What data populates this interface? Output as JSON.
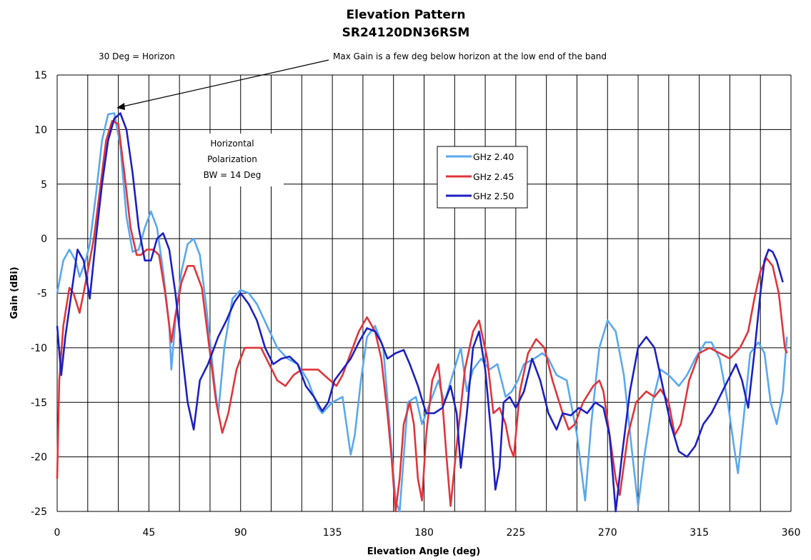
{
  "chart_data": {
    "type": "line",
    "title": "Elevation Pattern",
    "subtitle": "SR24120DN36RSM",
    "xlabel": "Elevation Angle (deg)",
    "ylabel": "Gain (dBi)",
    "xlim": [
      0,
      360
    ],
    "ylim": [
      -25,
      15
    ],
    "x_ticks": [
      0,
      45,
      90,
      135,
      180,
      225,
      270,
      315,
      360
    ],
    "y_ticks": [
      15,
      10,
      5,
      0,
      -5,
      -10,
      -15,
      -20,
      -25
    ],
    "grid": true,
    "legend": {
      "position": "inside-right-of-center"
    },
    "annotations": {
      "horizon": "30 Deg = Horizon",
      "max_gain": "Max Gain is a few deg below horizon at the low  end of the band",
      "pol_line1": "Horizontal",
      "pol_line2": "Polarization",
      "pol_line3": "BW = 14 Deg"
    },
    "series": [
      {
        "name": "GHz 2.40",
        "color": "#5aa8ee",
        "points": [
          [
            0,
            -5
          ],
          [
            3,
            -2
          ],
          [
            6,
            -1
          ],
          [
            9,
            -2
          ],
          [
            11,
            -3.5
          ],
          [
            14,
            -2
          ],
          [
            16,
            -0.5
          ],
          [
            19,
            4
          ],
          [
            22,
            9
          ],
          [
            25,
            11.4
          ],
          [
            28,
            11.5
          ],
          [
            31,
            8.5
          ],
          [
            34,
            2
          ],
          [
            37,
            -1.2
          ],
          [
            40,
            -1
          ],
          [
            43,
            1
          ],
          [
            46,
            2.5
          ],
          [
            49,
            1
          ],
          [
            52,
            -3
          ],
          [
            55,
            -8
          ],
          [
            56,
            -12
          ],
          [
            58,
            -7.5
          ],
          [
            61,
            -3
          ],
          [
            64,
            -0.5
          ],
          [
            67,
            0
          ],
          [
            70,
            -1.5
          ],
          [
            73,
            -6
          ],
          [
            77,
            -13
          ],
          [
            79,
            -16
          ],
          [
            82,
            -10
          ],
          [
            86,
            -5.5
          ],
          [
            90,
            -4.7
          ],
          [
            94,
            -5
          ],
          [
            98,
            -6
          ],
          [
            103,
            -8
          ],
          [
            108,
            -10
          ],
          [
            113,
            -11
          ],
          [
            118,
            -11.5
          ],
          [
            123,
            -13
          ],
          [
            128,
            -15.5
          ],
          [
            130,
            -16
          ],
          [
            135,
            -15
          ],
          [
            140,
            -14.5
          ],
          [
            144,
            -19.8
          ],
          [
            146,
            -18
          ],
          [
            149,
            -13
          ],
          [
            152,
            -9
          ],
          [
            156,
            -8
          ],
          [
            160,
            -10
          ],
          [
            163,
            -17
          ],
          [
            166,
            -24
          ],
          [
            168,
            -25
          ],
          [
            172,
            -15
          ],
          [
            176,
            -14.5
          ],
          [
            179,
            -17
          ],
          [
            183,
            -15
          ],
          [
            187,
            -13
          ],
          [
            190,
            -15
          ],
          [
            194,
            -12.5
          ],
          [
            198,
            -10
          ],
          [
            201,
            -14
          ],
          [
            204,
            -12
          ],
          [
            208,
            -11
          ],
          [
            212,
            -12
          ],
          [
            216,
            -11.5
          ],
          [
            220,
            -14.5
          ],
          [
            223,
            -14
          ],
          [
            226,
            -13
          ],
          [
            229,
            -11.5
          ],
          [
            234,
            -11
          ],
          [
            238,
            -10.5
          ],
          [
            241,
            -11
          ],
          [
            245,
            -12.5
          ],
          [
            250,
            -13
          ],
          [
            255,
            -18
          ],
          [
            259,
            -24
          ],
          [
            262,
            -17
          ],
          [
            266,
            -10
          ],
          [
            270,
            -7.5
          ],
          [
            274,
            -8.5
          ],
          [
            278,
            -12.5
          ],
          [
            282,
            -19.5
          ],
          [
            285,
            -24.5
          ],
          [
            288,
            -20
          ],
          [
            292,
            -15
          ],
          [
            296,
            -12
          ],
          [
            300,
            -12.5
          ],
          [
            305,
            -13.5
          ],
          [
            309,
            -12.5
          ],
          [
            313,
            -11
          ],
          [
            318,
            -9.5
          ],
          [
            321,
            -9.5
          ],
          [
            325,
            -11
          ],
          [
            329,
            -15
          ],
          [
            332,
            -19
          ],
          [
            334,
            -21.5
          ],
          [
            337,
            -16
          ],
          [
            340,
            -10.5
          ],
          [
            344,
            -9.5
          ],
          [
            347,
            -10.5
          ],
          [
            350,
            -15
          ],
          [
            353,
            -17
          ],
          [
            356,
            -14
          ],
          [
            358,
            -9
          ]
        ]
      },
      {
        "name": "GHz 2.45",
        "color": "#e0353a",
        "points": [
          [
            0,
            -22
          ],
          [
            1,
            -13
          ],
          [
            3,
            -8
          ],
          [
            6,
            -4.5
          ],
          [
            8,
            -5
          ],
          [
            11,
            -6.8
          ],
          [
            14,
            -4
          ],
          [
            18,
            0
          ],
          [
            21,
            4.5
          ],
          [
            24,
            9
          ],
          [
            27,
            10.8
          ],
          [
            30,
            10.5
          ],
          [
            33,
            6
          ],
          [
            36,
            1
          ],
          [
            39,
            -1.5
          ],
          [
            41,
            -1.5
          ],
          [
            44,
            -1
          ],
          [
            47,
            -1
          ],
          [
            50,
            -1.5
          ],
          [
            53,
            -5
          ],
          [
            56,
            -9.5
          ],
          [
            58,
            -7
          ],
          [
            61,
            -4
          ],
          [
            64,
            -2.5
          ],
          [
            67,
            -2.5
          ],
          [
            71,
            -4.5
          ],
          [
            74,
            -9
          ],
          [
            78,
            -15
          ],
          [
            81,
            -17.8
          ],
          [
            84,
            -16
          ],
          [
            88,
            -12
          ],
          [
            92,
            -10
          ],
          [
            96,
            -10
          ],
          [
            100,
            -10
          ],
          [
            104,
            -11.5
          ],
          [
            108,
            -13
          ],
          [
            112,
            -13.5
          ],
          [
            116,
            -12.5
          ],
          [
            120,
            -12
          ],
          [
            124,
            -12
          ],
          [
            128,
            -12
          ],
          [
            131,
            -12.5
          ],
          [
            134,
            -13
          ],
          [
            137,
            -13.5
          ],
          [
            140,
            -12.5
          ],
          [
            144,
            -10.5
          ],
          [
            148,
            -8.5
          ],
          [
            152,
            -7.2
          ],
          [
            156,
            -8.5
          ],
          [
            159,
            -11
          ],
          [
            162,
            -16
          ],
          [
            164,
            -20
          ],
          [
            166,
            -25
          ],
          [
            168,
            -22
          ],
          [
            170,
            -17
          ],
          [
            173,
            -15
          ],
          [
            175,
            -17
          ],
          [
            177,
            -22
          ],
          [
            179,
            -24
          ],
          [
            181,
            -18
          ],
          [
            184,
            -13
          ],
          [
            187,
            -11.5
          ],
          [
            189,
            -15
          ],
          [
            191,
            -20
          ],
          [
            193,
            -24.5
          ],
          [
            196,
            -19
          ],
          [
            200,
            -12
          ],
          [
            204,
            -8.5
          ],
          [
            207,
            -7.5
          ],
          [
            211,
            -11
          ],
          [
            214,
            -16
          ],
          [
            217,
            -15.5
          ],
          [
            220,
            -17
          ],
          [
            222,
            -19
          ],
          [
            224,
            -20
          ],
          [
            227,
            -14
          ],
          [
            231,
            -10.5
          ],
          [
            235,
            -9.2
          ],
          [
            239,
            -10
          ],
          [
            243,
            -13
          ],
          [
            248,
            -16
          ],
          [
            251,
            -17.5
          ],
          [
            254,
            -17
          ],
          [
            258,
            -15
          ],
          [
            263,
            -13.5
          ],
          [
            266,
            -13
          ],
          [
            268,
            -14
          ],
          [
            271,
            -18
          ],
          [
            274,
            -22
          ],
          [
            276,
            -23.5
          ],
          [
            280,
            -18
          ],
          [
            284,
            -15
          ],
          [
            289,
            -14
          ],
          [
            293,
            -14.5
          ],
          [
            296,
            -13.8
          ],
          [
            300,
            -15
          ],
          [
            303,
            -18
          ],
          [
            306,
            -17
          ],
          [
            310,
            -13
          ],
          [
            315,
            -10.5
          ],
          [
            320,
            -10
          ],
          [
            325,
            -10.5
          ],
          [
            330,
            -11
          ],
          [
            335,
            -10
          ],
          [
            339,
            -8.5
          ],
          [
            342,
            -5.5
          ],
          [
            345,
            -3
          ],
          [
            348,
            -1.8
          ],
          [
            351,
            -2.5
          ],
          [
            354,
            -5
          ],
          [
            357,
            -10
          ],
          [
            358,
            -10.5
          ]
        ]
      },
      {
        "name": "GHz 2.50",
        "color": "#1c20c0",
        "points": [
          [
            0,
            -8
          ],
          [
            2,
            -12.5
          ],
          [
            4,
            -9
          ],
          [
            7,
            -5
          ],
          [
            10,
            -1
          ],
          [
            13,
            -2
          ],
          [
            16,
            -5.5
          ],
          [
            19,
            0
          ],
          [
            22,
            5
          ],
          [
            25,
            9
          ],
          [
            28,
            11
          ],
          [
            31,
            11.5
          ],
          [
            34,
            10
          ],
          [
            37,
            6
          ],
          [
            40,
            1
          ],
          [
            43,
            -2
          ],
          [
            46,
            -2
          ],
          [
            49,
            0
          ],
          [
            52,
            0.5
          ],
          [
            55,
            -1
          ],
          [
            58,
            -5
          ],
          [
            61,
            -10
          ],
          [
            64,
            -15
          ],
          [
            67,
            -17.5
          ],
          [
            70,
            -13
          ],
          [
            74,
            -11.5
          ],
          [
            79,
            -9
          ],
          [
            83,
            -7.5
          ],
          [
            87,
            -5.8
          ],
          [
            90,
            -5
          ],
          [
            94,
            -6
          ],
          [
            98,
            -7.5
          ],
          [
            102,
            -10
          ],
          [
            106,
            -11.5
          ],
          [
            110,
            -11
          ],
          [
            114,
            -10.8
          ],
          [
            118,
            -11.5
          ],
          [
            122,
            -13.5
          ],
          [
            126,
            -14.5
          ],
          [
            130,
            -15.8
          ],
          [
            133,
            -15
          ],
          [
            136,
            -13
          ],
          [
            140,
            -12
          ],
          [
            144,
            -11
          ],
          [
            148,
            -9.5
          ],
          [
            152,
            -8.2
          ],
          [
            156,
            -8.5
          ],
          [
            159,
            -9.5
          ],
          [
            162,
            -11
          ],
          [
            166,
            -10.5
          ],
          [
            170,
            -10.2
          ],
          [
            173,
            -11.5
          ],
          [
            177,
            -13.5
          ],
          [
            181,
            -16
          ],
          [
            185,
            -16
          ],
          [
            189,
            -15.5
          ],
          [
            193,
            -13.5
          ],
          [
            196,
            -16
          ],
          [
            198,
            -21
          ],
          [
            201,
            -16
          ],
          [
            204,
            -10
          ],
          [
            207,
            -8.5
          ],
          [
            210,
            -12
          ],
          [
            213,
            -18
          ],
          [
            215,
            -23
          ],
          [
            217,
            -21
          ],
          [
            219,
            -15
          ],
          [
            222,
            -14.5
          ],
          [
            225,
            -15.5
          ],
          [
            229,
            -14
          ],
          [
            233,
            -11
          ],
          [
            237,
            -13
          ],
          [
            241,
            -16
          ],
          [
            245,
            -17.5
          ],
          [
            248,
            -16
          ],
          [
            252,
            -16.2
          ],
          [
            256,
            -15.5
          ],
          [
            260,
            -16
          ],
          [
            264,
            -15
          ],
          [
            268,
            -15.5
          ],
          [
            271,
            -18
          ],
          [
            274,
            -25
          ],
          [
            277,
            -20
          ],
          [
            281,
            -14
          ],
          [
            285,
            -10
          ],
          [
            289,
            -9
          ],
          [
            293,
            -10
          ],
          [
            297,
            -13.5
          ],
          [
            301,
            -17
          ],
          [
            305,
            -19.5
          ],
          [
            309,
            -20
          ],
          [
            313,
            -19
          ],
          [
            317,
            -17
          ],
          [
            321,
            -16
          ],
          [
            325,
            -14.5
          ],
          [
            329,
            -13
          ],
          [
            333,
            -11.5
          ],
          [
            336,
            -13
          ],
          [
            339,
            -15.5
          ],
          [
            342,
            -10.5
          ],
          [
            345,
            -5
          ],
          [
            347,
            -2
          ],
          [
            349,
            -1
          ],
          [
            351,
            -1.2
          ],
          [
            353,
            -2
          ],
          [
            356,
            -4
          ]
        ]
      }
    ]
  }
}
